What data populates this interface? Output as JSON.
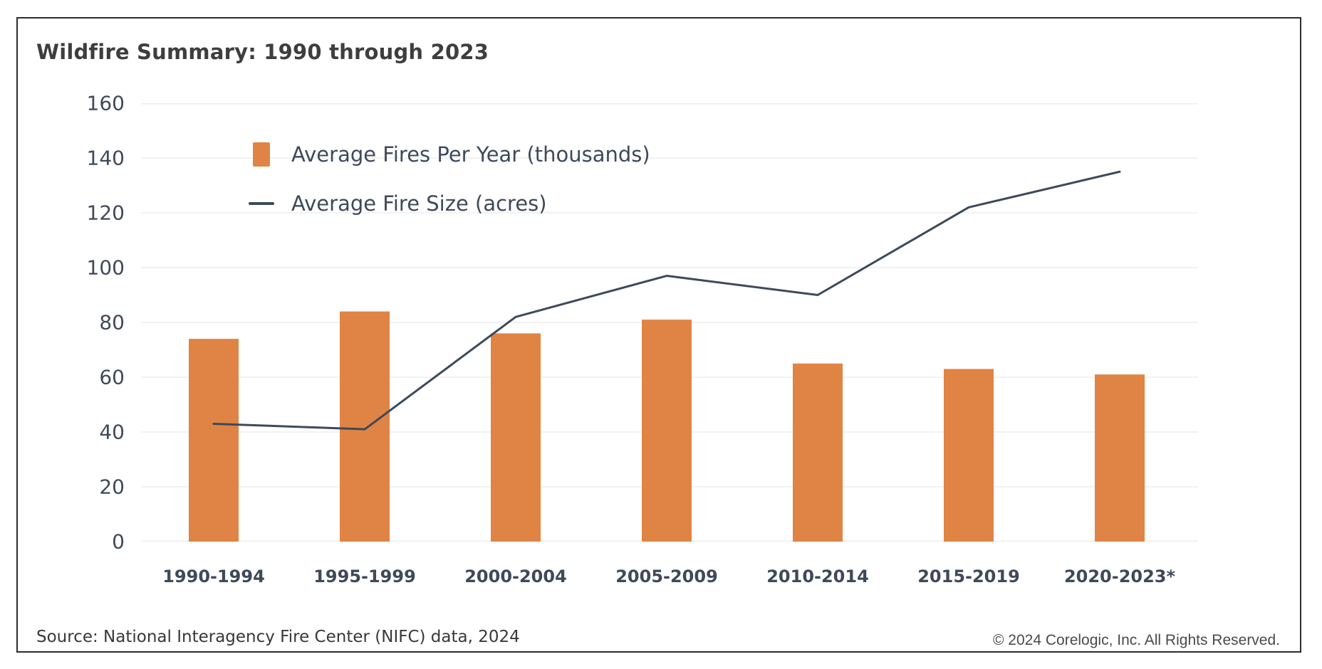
{
  "title": "Wildfire Summary: 1990 through 2023",
  "legend": {
    "items": [
      {
        "label": "Average Fires Per Year (thousands)",
        "marker": "bar-swatch-icon"
      },
      {
        "label": "Average Fire Size (acres)",
        "marker": "line-swatch-icon"
      }
    ]
  },
  "footer": {
    "source": "Source: National Interagency Fire Center (NIFC) data, 2024",
    "copyright": "© 2024 Corelogic, Inc. All Rights Reserved."
  },
  "colors": {
    "bar": "#E08445",
    "line": "#3D4A59",
    "grid": "#EDEDED",
    "axis_text": "#3E4A59",
    "title_text": "#3E3E3E",
    "border": "#2D2D2D"
  },
  "chart_data": {
    "type": "bar+line",
    "title": "Wildfire Summary: 1990 through 2023",
    "categories": [
      "1990-1994",
      "1995-1999",
      "2000-2004",
      "2005-2009",
      "2010-2014",
      "2015-2019",
      "2020-2023*"
    ],
    "series": [
      {
        "name": "Average Fires Per Year (thousands)",
        "type": "bar",
        "color": "#E08445",
        "values": [
          74,
          84,
          76,
          81,
          65,
          63,
          61
        ]
      },
      {
        "name": "Average Fire Size (acres)",
        "type": "line",
        "color": "#3D4A59",
        "values": [
          43,
          41,
          82,
          97,
          90,
          122,
          135
        ]
      }
    ],
    "xlabel": "",
    "ylabel": "",
    "ylim": [
      0,
      160
    ],
    "ytick_step": 20,
    "grid": "horizontal",
    "legend_position": "top-left-inside"
  }
}
